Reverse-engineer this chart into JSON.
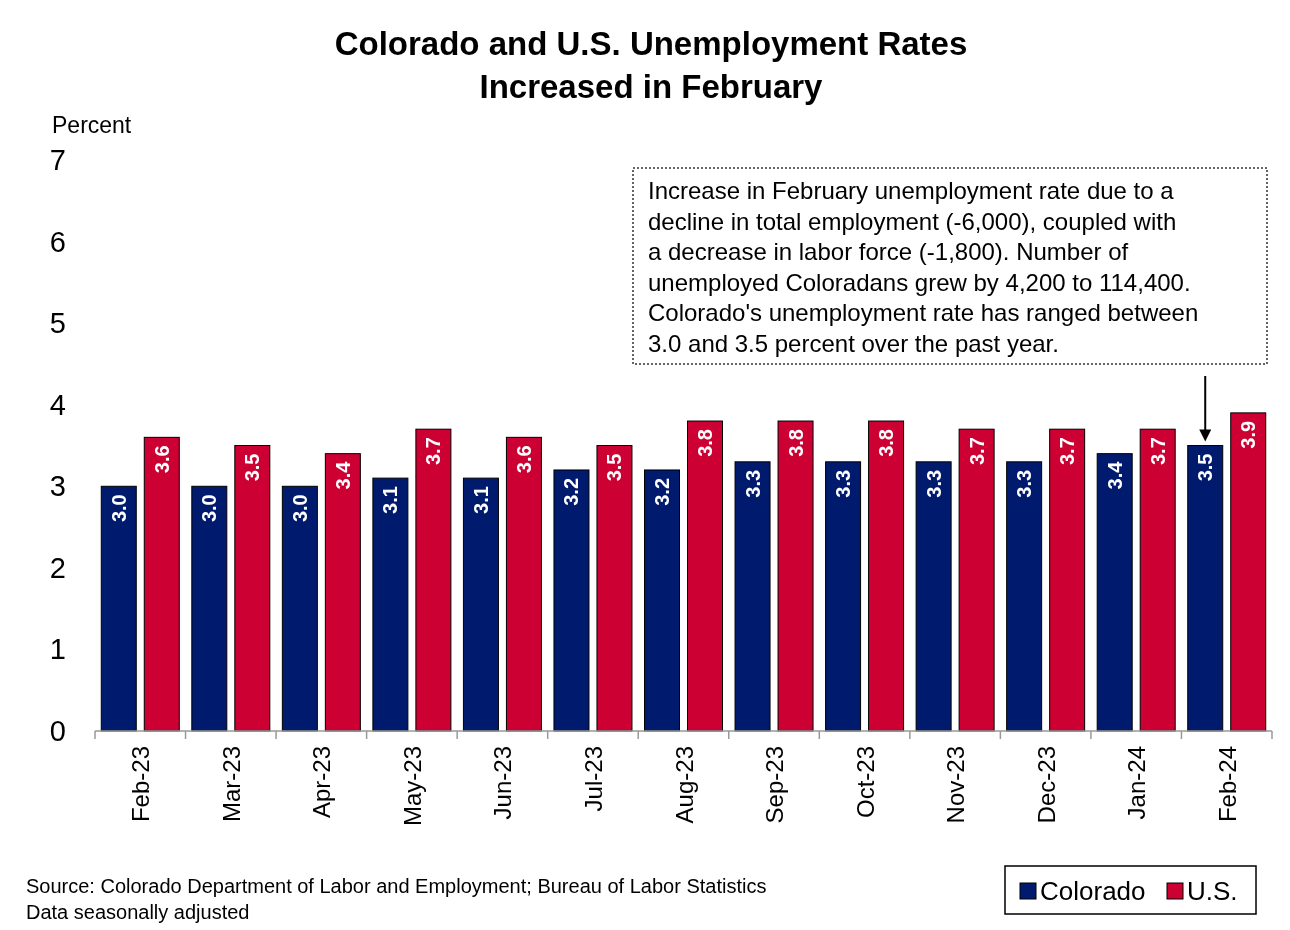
{
  "chart_data": {
    "type": "bar",
    "title": "Colorado and U.S. Unemployment Rates\nIncreased in February",
    "ylabel": "Percent",
    "categories": [
      "Feb-23",
      "Mar-23",
      "Apr-23",
      "May-23",
      "Jun-23",
      "Jul-23",
      "Aug-23",
      "Sep-23",
      "Oct-23",
      "Nov-23",
      "Dec-23",
      "Jan-24",
      "Feb-24"
    ],
    "series": [
      {
        "name": "Colorado",
        "color": "#001a6e",
        "values": [
          3.0,
          3.0,
          3.0,
          3.1,
          3.1,
          3.2,
          3.2,
          3.3,
          3.3,
          3.3,
          3.3,
          3.4,
          3.5
        ],
        "value_labels": [
          "3.0",
          "3.0",
          "3.0",
          "3.1",
          "3.1",
          "3.2",
          "3.2",
          "3.3",
          "3.3",
          "3.3",
          "3.3",
          "3.4",
          "3.5"
        ]
      },
      {
        "name": "U.S.",
        "color": "#cc0033",
        "values": [
          3.6,
          3.5,
          3.4,
          3.7,
          3.6,
          3.5,
          3.8,
          3.8,
          3.8,
          3.7,
          3.7,
          3.7,
          3.9
        ],
        "value_labels": [
          "3.6",
          "3.5",
          "3.4",
          "3.7",
          "3.6",
          "3.5",
          "3.8",
          "3.8",
          "3.8",
          "3.7",
          "3.7",
          "3.7",
          "3.9"
        ]
      }
    ],
    "ylim": [
      0,
      7
    ],
    "yticks": [
      0,
      1,
      2,
      3,
      4,
      5,
      6,
      7
    ],
    "grid": false,
    "legend": "bottom right",
    "annotations": [
      "Increase in February unemployment rate due to a\ndecline in total employment (-6,000), coupled with\na decrease in labor force (-1,800). Number of\nunemployed Coloradans grew by 4,200 to 114,400.\nColorado's unemployment rate has ranged between\n3.0 and 3.5 percent over the past year.",
      "Source: Colorado Department of Labor and Employment; Bureau of Labor Statistics",
      "Data seasonally adjusted"
    ]
  }
}
